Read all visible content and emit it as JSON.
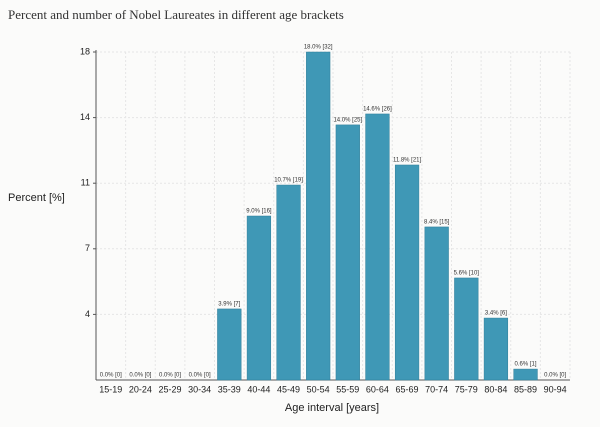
{
  "chart_data": {
    "type": "bar",
    "title": "Percent and number of Nobel Laureates in different age brackets",
    "xlabel": "Age interval [years]",
    "ylabel": "Percent [%]",
    "categories": [
      "15-19",
      "20-24",
      "25-29",
      "30-34",
      "35-39",
      "40-44",
      "45-49",
      "50-54",
      "55-59",
      "60-64",
      "65-69",
      "70-74",
      "75-79",
      "80-84",
      "85-89",
      "90-94"
    ],
    "values": [
      0,
      0,
      0,
      0,
      3.9,
      9.0,
      10.7,
      18.0,
      14.0,
      14.6,
      11.8,
      8.4,
      5.6,
      3.4,
      0.6,
      0
    ],
    "value_labels": [
      "0.0% [0]",
      "0.0% [0]",
      "0.0% [0]",
      "0.0% [0]",
      "3.9% [7]",
      "9.0% [16]",
      "10.7% [19]",
      "18.0% [32]",
      "14.0% [25]",
      "14.6% [26]",
      "11.8% [21]",
      "8.4% [15]",
      "5.6% [10]",
      "3.4% [6]",
      "0.6% [1]",
      "0.0% [0]"
    ],
    "color": "#3f98b6",
    "ylim": [
      0,
      18
    ],
    "yticks": [
      {
        "value": 3.6,
        "label": "4"
      },
      {
        "value": 7.2,
        "label": "7"
      },
      {
        "value": 10.8,
        "label": "11"
      },
      {
        "value": 14.4,
        "label": "14"
      },
      {
        "value": 18,
        "label": "18"
      }
    ],
    "grid": true
  }
}
